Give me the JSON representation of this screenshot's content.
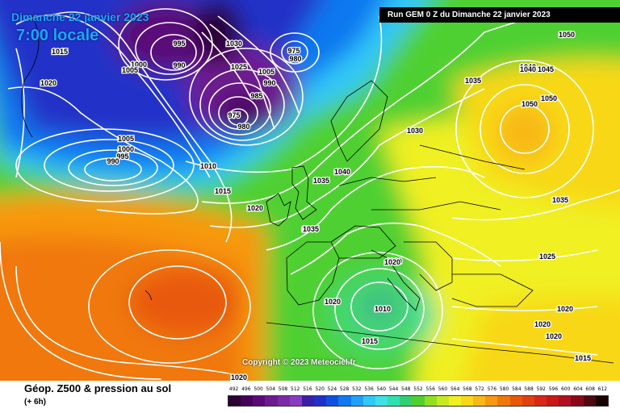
{
  "header": {
    "date": "Dimanche 22 janvier 2023",
    "time": "7:00 locale",
    "run": "Run GEM 0 Z du Dimanche 22 janvier 2023"
  },
  "copyright": "Copyright © 2023 Meteociel.fr",
  "footer": {
    "title": "Géop. Z500 & pression au sol",
    "subtitle": "(+ 6h)"
  },
  "scale": {
    "labels": [
      "492",
      "496",
      "500",
      "504",
      "508",
      "512",
      "516",
      "520",
      "524",
      "528",
      "532",
      "536",
      "540",
      "544",
      "548",
      "552",
      "556",
      "560",
      "564",
      "568",
      "572",
      "576",
      "580",
      "584",
      "588",
      "592",
      "596",
      "600",
      "604",
      "608",
      "612"
    ],
    "colors": [
      "#2a0030",
      "#45005a",
      "#5a0a78",
      "#6e1a90",
      "#7a2aa6",
      "#8a3cc0",
      "#3a20a8",
      "#2030c8",
      "#1050e0",
      "#1078f0",
      "#20a0f8",
      "#30c8f8",
      "#40e0e8",
      "#30e0b0",
      "#30d070",
      "#50d030",
      "#90e020",
      "#c8e820",
      "#f0f020",
      "#f8d818",
      "#f8b818",
      "#f89810",
      "#f07808",
      "#e85808",
      "#e04010",
      "#d82818",
      "#c81818",
      "#b01020",
      "#880818",
      "#500810",
      "#180000"
    ]
  },
  "isobars": [
    {
      "label": "995"
    },
    {
      "label": "990"
    },
    {
      "label": "1000"
    },
    {
      "label": "1030"
    },
    {
      "label": "1025"
    },
    {
      "label": "1005"
    },
    {
      "label": "985"
    },
    {
      "label": "975"
    },
    {
      "label": "980"
    },
    {
      "label": "990"
    },
    {
      "label": "975"
    },
    {
      "label": "980"
    },
    {
      "label": "1015"
    },
    {
      "label": "1005"
    },
    {
      "label": "1020"
    },
    {
      "label": "1005"
    },
    {
      "label": "1000"
    },
    {
      "label": "995"
    },
    {
      "label": "990"
    },
    {
      "label": "1010"
    },
    {
      "label": "1015"
    },
    {
      "label": "1020"
    },
    {
      "label": "1035"
    },
    {
      "label": "1040"
    },
    {
      "label": "1040"
    },
    {
      "label": "1035"
    },
    {
      "label": "1030"
    },
    {
      "label": "1035"
    },
    {
      "label": "1020"
    },
    {
      "label": "1020"
    },
    {
      "label": "1010"
    },
    {
      "label": "1015"
    },
    {
      "label": "1020"
    },
    {
      "label": "1050"
    },
    {
      "label": "1040"
    },
    {
      "label": "1045"
    },
    {
      "label": "1050"
    },
    {
      "label": "1050"
    },
    {
      "label": "1035"
    },
    {
      "label": "1035"
    },
    {
      "label": "1025"
    },
    {
      "label": "1020"
    },
    {
      "label": "1020"
    },
    {
      "label": "1020"
    },
    {
      "label": "1015"
    },
    {
      "label": "1020"
    }
  ]
}
